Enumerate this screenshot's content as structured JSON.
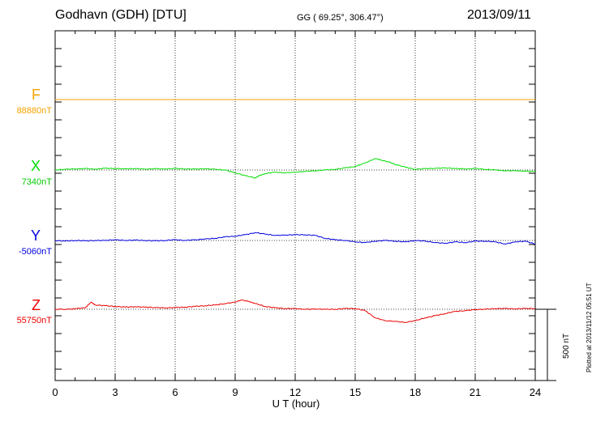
{
  "header": {
    "station": "Godhavn (GDH)  [DTU]",
    "coords": "GG ( 69.25°, 306.47°)",
    "date": "2013/09/11"
  },
  "plotted_note": "Plotted at 2013/11/12 05:51  UT",
  "scale_label": "500 nT",
  "chart_data": {
    "type": "line",
    "xlabel": "U T (hour)",
    "xlim": [
      0,
      24
    ],
    "xticks": [
      "0",
      "3",
      "6",
      "9",
      "12",
      "15",
      "18",
      "21",
      "24"
    ],
    "ylabel": "",
    "scale_bar_nT": 500,
    "grid": "dotted vertical every 3 h; dotted baseline per component",
    "series": [
      {
        "name": "F",
        "baseline_label": "88880nT",
        "color": "#f5a300",
        "points": [
          [
            0,
            0
          ],
          [
            24,
            0
          ]
        ]
      },
      {
        "name": "X",
        "baseline_label": "7340nT",
        "color": "#00dd00",
        "points": [
          [
            0,
            0
          ],
          [
            0.5,
            5
          ],
          [
            1,
            8
          ],
          [
            1.5,
            10
          ],
          [
            2,
            6
          ],
          [
            2.5,
            12
          ],
          [
            3,
            10
          ],
          [
            3.5,
            8
          ],
          [
            4,
            10
          ],
          [
            4.5,
            6
          ],
          [
            5,
            9
          ],
          [
            5.5,
            8
          ],
          [
            6,
            10
          ],
          [
            6.5,
            8
          ],
          [
            7,
            6
          ],
          [
            7.5,
            9
          ],
          [
            8,
            5
          ],
          [
            8.5,
            0
          ],
          [
            9,
            -20
          ],
          [
            9.5,
            -40
          ],
          [
            10,
            -55
          ],
          [
            10.2,
            -40
          ],
          [
            10.5,
            -25
          ],
          [
            11,
            -15
          ],
          [
            11.5,
            -20
          ],
          [
            12,
            -15
          ],
          [
            12.5,
            -10
          ],
          [
            13,
            -5
          ],
          [
            13.5,
            0
          ],
          [
            14,
            5
          ],
          [
            14.5,
            15
          ],
          [
            15,
            25
          ],
          [
            15.5,
            50
          ],
          [
            16,
            80
          ],
          [
            16.3,
            70
          ],
          [
            16.7,
            55
          ],
          [
            17,
            40
          ],
          [
            17.5,
            20
          ],
          [
            18,
            5
          ],
          [
            18.5,
            10
          ],
          [
            19,
            12
          ],
          [
            19.5,
            15
          ],
          [
            20,
            10
          ],
          [
            20.5,
            8
          ],
          [
            21,
            10
          ],
          [
            21.5,
            5
          ],
          [
            22,
            0
          ],
          [
            22.5,
            -5
          ],
          [
            23,
            -5
          ],
          [
            23.5,
            -8
          ],
          [
            24,
            -10
          ]
        ]
      },
      {
        "name": "Y",
        "baseline_label": "-5060nT",
        "color": "#0000e0",
        "points": [
          [
            0,
            0
          ],
          [
            0.5,
            -5
          ],
          [
            1,
            0
          ],
          [
            1.5,
            -3
          ],
          [
            2,
            0
          ],
          [
            2.5,
            0
          ],
          [
            3,
            5
          ],
          [
            3.5,
            0
          ],
          [
            4,
            2
          ],
          [
            4.5,
            0
          ],
          [
            5,
            -3
          ],
          [
            5.5,
            0
          ],
          [
            6,
            5
          ],
          [
            6.5,
            0
          ],
          [
            7,
            5
          ],
          [
            7.5,
            10
          ],
          [
            8,
            15
          ],
          [
            8.5,
            25
          ],
          [
            9,
            30
          ],
          [
            9.5,
            40
          ],
          [
            10,
            55
          ],
          [
            10.5,
            45
          ],
          [
            11,
            35
          ],
          [
            11.5,
            38
          ],
          [
            12,
            40
          ],
          [
            12.5,
            40
          ],
          [
            13,
            35
          ],
          [
            13.5,
            15
          ],
          [
            14,
            5
          ],
          [
            14.5,
            0
          ],
          [
            15,
            -10
          ],
          [
            15.5,
            -15
          ],
          [
            16,
            -5
          ],
          [
            16.5,
            0
          ],
          [
            17,
            -5
          ],
          [
            17.5,
            -10
          ],
          [
            18,
            0
          ],
          [
            18.5,
            -5
          ],
          [
            19,
            -15
          ],
          [
            19.5,
            -20
          ],
          [
            20,
            -10
          ],
          [
            20.5,
            -15
          ],
          [
            21,
            -5
          ],
          [
            21.5,
            -5
          ],
          [
            22,
            -10
          ],
          [
            22.5,
            -25
          ],
          [
            23,
            -10
          ],
          [
            23.5,
            -5
          ],
          [
            24,
            -25
          ]
        ]
      },
      {
        "name": "Z",
        "baseline_label": "55750nT",
        "color": "#ee0000",
        "points": [
          [
            0,
            0
          ],
          [
            0.8,
            0
          ],
          [
            1,
            5
          ],
          [
            1.5,
            10
          ],
          [
            1.8,
            50
          ],
          [
            2,
            30
          ],
          [
            2.5,
            25
          ],
          [
            3,
            20
          ],
          [
            3.5,
            15
          ],
          [
            4,
            18
          ],
          [
            4.5,
            15
          ],
          [
            5,
            12
          ],
          [
            5.5,
            10
          ],
          [
            6,
            12
          ],
          [
            6.5,
            15
          ],
          [
            7,
            20
          ],
          [
            7.5,
            25
          ],
          [
            8,
            30
          ],
          [
            8.5,
            40
          ],
          [
            9,
            50
          ],
          [
            9.3,
            65
          ],
          [
            9.7,
            55
          ],
          [
            10,
            40
          ],
          [
            10.5,
            20
          ],
          [
            11,
            10
          ],
          [
            11.5,
            5
          ],
          [
            12,
            5
          ],
          [
            12.5,
            0
          ],
          [
            13,
            2
          ],
          [
            13.5,
            0
          ],
          [
            14,
            0
          ],
          [
            14.5,
            5
          ],
          [
            15,
            5
          ],
          [
            15.5,
            -10
          ],
          [
            16,
            -60
          ],
          [
            16.5,
            -80
          ],
          [
            17,
            -85
          ],
          [
            17.5,
            -92
          ],
          [
            18,
            -80
          ],
          [
            18.5,
            -60
          ],
          [
            19,
            -45
          ],
          [
            19.5,
            -30
          ],
          [
            20,
            -15
          ],
          [
            20.5,
            -10
          ],
          [
            21,
            -2
          ],
          [
            21.5,
            0
          ],
          [
            22,
            5
          ],
          [
            22.5,
            5
          ],
          [
            23,
            3
          ],
          [
            23.5,
            5
          ],
          [
            24,
            5
          ]
        ]
      }
    ]
  }
}
